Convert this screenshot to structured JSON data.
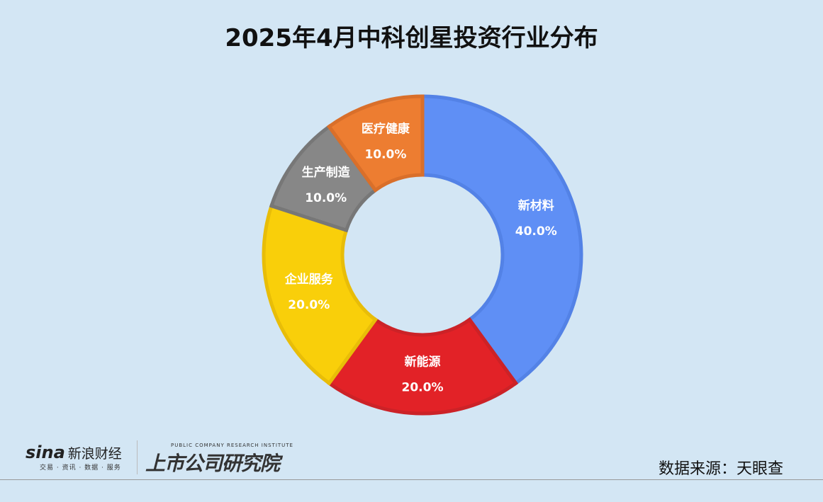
{
  "chart_data": {
    "type": "pie",
    "title": "2025年4月中科创星投资行业分布",
    "donut": true,
    "slices": [
      {
        "label": "新材料",
        "value": 40.0,
        "pct": "40.0%",
        "color": "#5f8ff5",
        "stroke": "#5382e6"
      },
      {
        "label": "新能源",
        "value": 20.0,
        "pct": "20.0%",
        "color": "#e22227",
        "stroke": "#cc2227"
      },
      {
        "label": "企业服务",
        "value": 20.0,
        "pct": "20.0%",
        "color": "#f9cf0a",
        "stroke": "#e8bd08"
      },
      {
        "label": "生产制造",
        "value": 10.0,
        "pct": "10.0%",
        "color": "#878787",
        "stroke": "#777777"
      },
      {
        "label": "医疗健康",
        "value": 10.0,
        "pct": "10.0%",
        "color": "#ed7d31",
        "stroke": "#d96f2a"
      }
    ]
  },
  "source": "数据来源：天眼查",
  "logos": {
    "sina": "sina",
    "sina_cn": "新浪财经",
    "sina_sub": "交易 · 资讯 · 数据 · 服务",
    "institute_en": "PUBLIC COMPANY RESEARCH INSTITUTE",
    "institute_cn": "上市公司研究院"
  }
}
